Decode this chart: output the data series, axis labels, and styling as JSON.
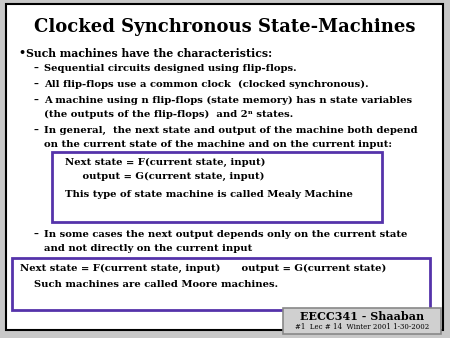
{
  "title": "Clocked Synchronous State-Machines",
  "bg_color": "#c8c8c8",
  "slide_bg": "#ffffff",
  "border_color": "#000000",
  "box_border_color": "#5533aa",
  "title_color": "#000000",
  "bullet_color": "#000000",
  "bullet1": "Such machines have the characteristics:",
  "sub_bullet1": "Sequential circuits designed using flip-flops.",
  "sub_bullet2": "All flip-flops use a common clock  (clocked synchronous).",
  "sub_bullet3a": "A machine using n flip-flops (state memory) has n state variables",
  "sub_bullet3b": "(the outputs of the flip-flops)  and 2ⁿ states.",
  "sub_bullet4a": "In general,  the next state and output of the machine both depend",
  "sub_bullet4b": "on the current state of the machine and on the current input:",
  "box1_line1": "Next state = F(current state, input)",
  "box1_line2": "     output = G(current state, input)",
  "box1_line3": "This type of state machine is called Mealy Machine",
  "sub_bullet5a": "In some cases the next output depends only on the current state",
  "sub_bullet5b": "and not directly on the current input",
  "box2_line1": "Next state = F(current state, input)      output = G(current state)",
  "box2_line2": "    Such machines are called Moore machines.",
  "footer_label": "EECC341 - Shaaban",
  "footer_sub": "#1  Lec # 14  Winter 2001 1-30-2002",
  "footer_bg": "#d0d0d0",
  "footer_border": "#888888"
}
